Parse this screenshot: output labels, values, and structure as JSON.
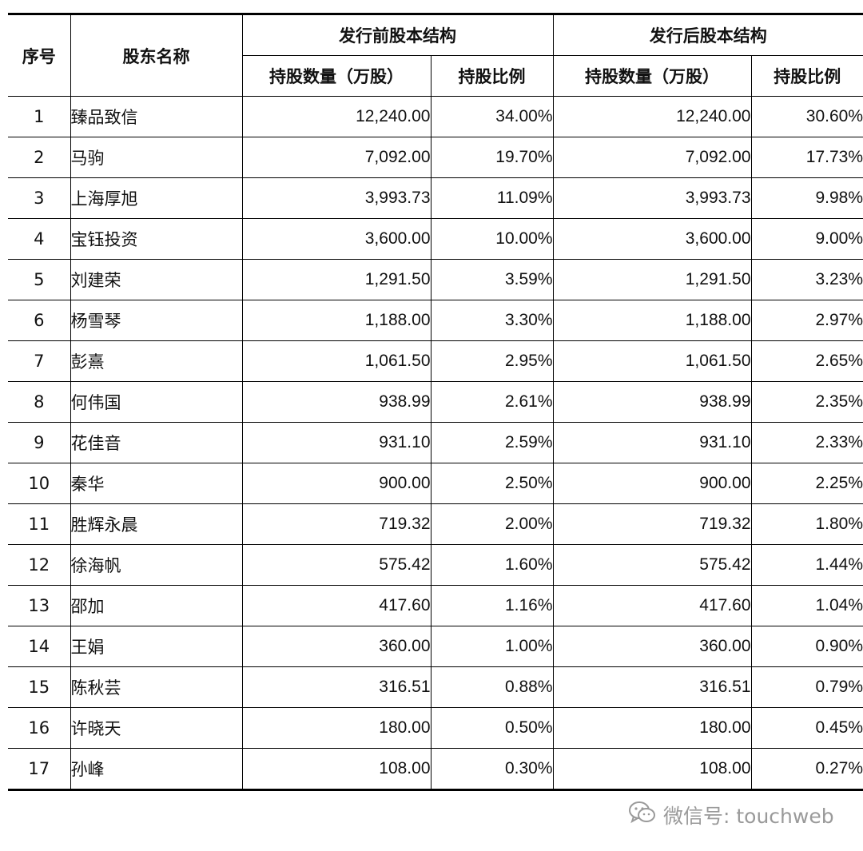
{
  "header": {
    "col_index": "序号",
    "col_name": "股东名称",
    "group_before": "发行前股本结构",
    "group_after": "发行后股本结构",
    "sub_qty": "持股数量（万股）",
    "sub_ratio": "持股比例"
  },
  "rows": [
    {
      "no": "1",
      "name": "臻品致信",
      "before_qty": "12,240.00",
      "before_ratio": "34.00%",
      "after_qty": "12,240.00",
      "after_ratio": "30.60%"
    },
    {
      "no": "2",
      "name": "马驹",
      "before_qty": "7,092.00",
      "before_ratio": "19.70%",
      "after_qty": "7,092.00",
      "after_ratio": "17.73%"
    },
    {
      "no": "3",
      "name": "上海厚旭",
      "before_qty": "3,993.73",
      "before_ratio": "11.09%",
      "after_qty": "3,993.73",
      "after_ratio": "9.98%"
    },
    {
      "no": "4",
      "name": "宝钰投资",
      "before_qty": "3,600.00",
      "before_ratio": "10.00%",
      "after_qty": "3,600.00",
      "after_ratio": "9.00%"
    },
    {
      "no": "5",
      "name": "刘建荣",
      "before_qty": "1,291.50",
      "before_ratio": "3.59%",
      "after_qty": "1,291.50",
      "after_ratio": "3.23%"
    },
    {
      "no": "6",
      "name": "杨雪琴",
      "before_qty": "1,188.00",
      "before_ratio": "3.30%",
      "after_qty": "1,188.00",
      "after_ratio": "2.97%"
    },
    {
      "no": "7",
      "name": "彭熹",
      "before_qty": "1,061.50",
      "before_ratio": "2.95%",
      "after_qty": "1,061.50",
      "after_ratio": "2.65%"
    },
    {
      "no": "8",
      "name": "何伟国",
      "before_qty": "938.99",
      "before_ratio": "2.61%",
      "after_qty": "938.99",
      "after_ratio": "2.35%"
    },
    {
      "no": "9",
      "name": "花佳音",
      "before_qty": "931.10",
      "before_ratio": "2.59%",
      "after_qty": "931.10",
      "after_ratio": "2.33%"
    },
    {
      "no": "10",
      "name": "秦华",
      "before_qty": "900.00",
      "before_ratio": "2.50%",
      "after_qty": "900.00",
      "after_ratio": "2.25%"
    },
    {
      "no": "11",
      "name": "胜辉永晨",
      "before_qty": "719.32",
      "before_ratio": "2.00%",
      "after_qty": "719.32",
      "after_ratio": "1.80%"
    },
    {
      "no": "12",
      "name": "徐海帆",
      "before_qty": "575.42",
      "before_ratio": "1.60%",
      "after_qty": "575.42",
      "after_ratio": "1.44%"
    },
    {
      "no": "13",
      "name": "邵加",
      "before_qty": "417.60",
      "before_ratio": "1.16%",
      "after_qty": "417.60",
      "after_ratio": "1.04%"
    },
    {
      "no": "14",
      "name": "王娟",
      "before_qty": "360.00",
      "before_ratio": "1.00%",
      "after_qty": "360.00",
      "after_ratio": "0.90%"
    },
    {
      "no": "15",
      "name": "陈秋芸",
      "before_qty": "316.51",
      "before_ratio": "0.88%",
      "after_qty": "316.51",
      "after_ratio": "0.79%"
    },
    {
      "no": "16",
      "name": "许晓天",
      "before_qty": "180.00",
      "before_ratio": "0.50%",
      "after_qty": "180.00",
      "after_ratio": "0.45%"
    },
    {
      "no": "17",
      "name": "孙峰",
      "before_qty": "108.00",
      "before_ratio": "0.30%",
      "after_qty": "108.00",
      "after_ratio": "0.27%"
    }
  ],
  "watermark": {
    "icon": "wechat-icon",
    "text": "微信号: touchweb",
    "color": "#9a9a9a"
  }
}
